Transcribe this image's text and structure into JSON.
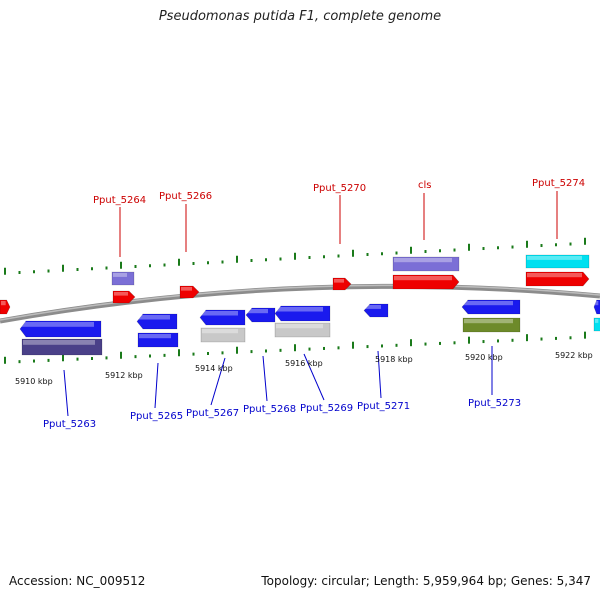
{
  "title": "Pseudomonas putida F1, complete genome",
  "footer": {
    "accession": "Accession: NC_009512",
    "topology": "Topology: circular; Length: 5,959,964 bp; Genes: 5,347"
  },
  "colors": {
    "backbone": "#8c8c8c",
    "tick": "#1a7a1a",
    "top_label": "#cc0000",
    "bottom_label": "#0000cc",
    "red": "#ee0000",
    "blue": "#1a1aee",
    "lavender": "#7b6fd6",
    "cyan": "#00e0f0",
    "grey": "#c8c8c8",
    "olive": "#6d8a2a",
    "dark_purple": "#4a4088"
  },
  "kbp_labels": [
    "5910 kbp",
    "5912 kbp",
    "5914 kbp",
    "5916 kbp",
    "5918 kbp",
    "5920 kbp",
    "5922 kbp"
  ],
  "top_genes": [
    "Pput_5264",
    "Pput_5266",
    "Pput_5270",
    "cls",
    "Pput_5274"
  ],
  "bottom_genes": [
    "Pput_5263",
    "Pput_5265",
    "Pput_5267",
    "Pput_5268",
    "Pput_5269",
    "Pput_5271",
    "Pput_5273"
  ]
}
